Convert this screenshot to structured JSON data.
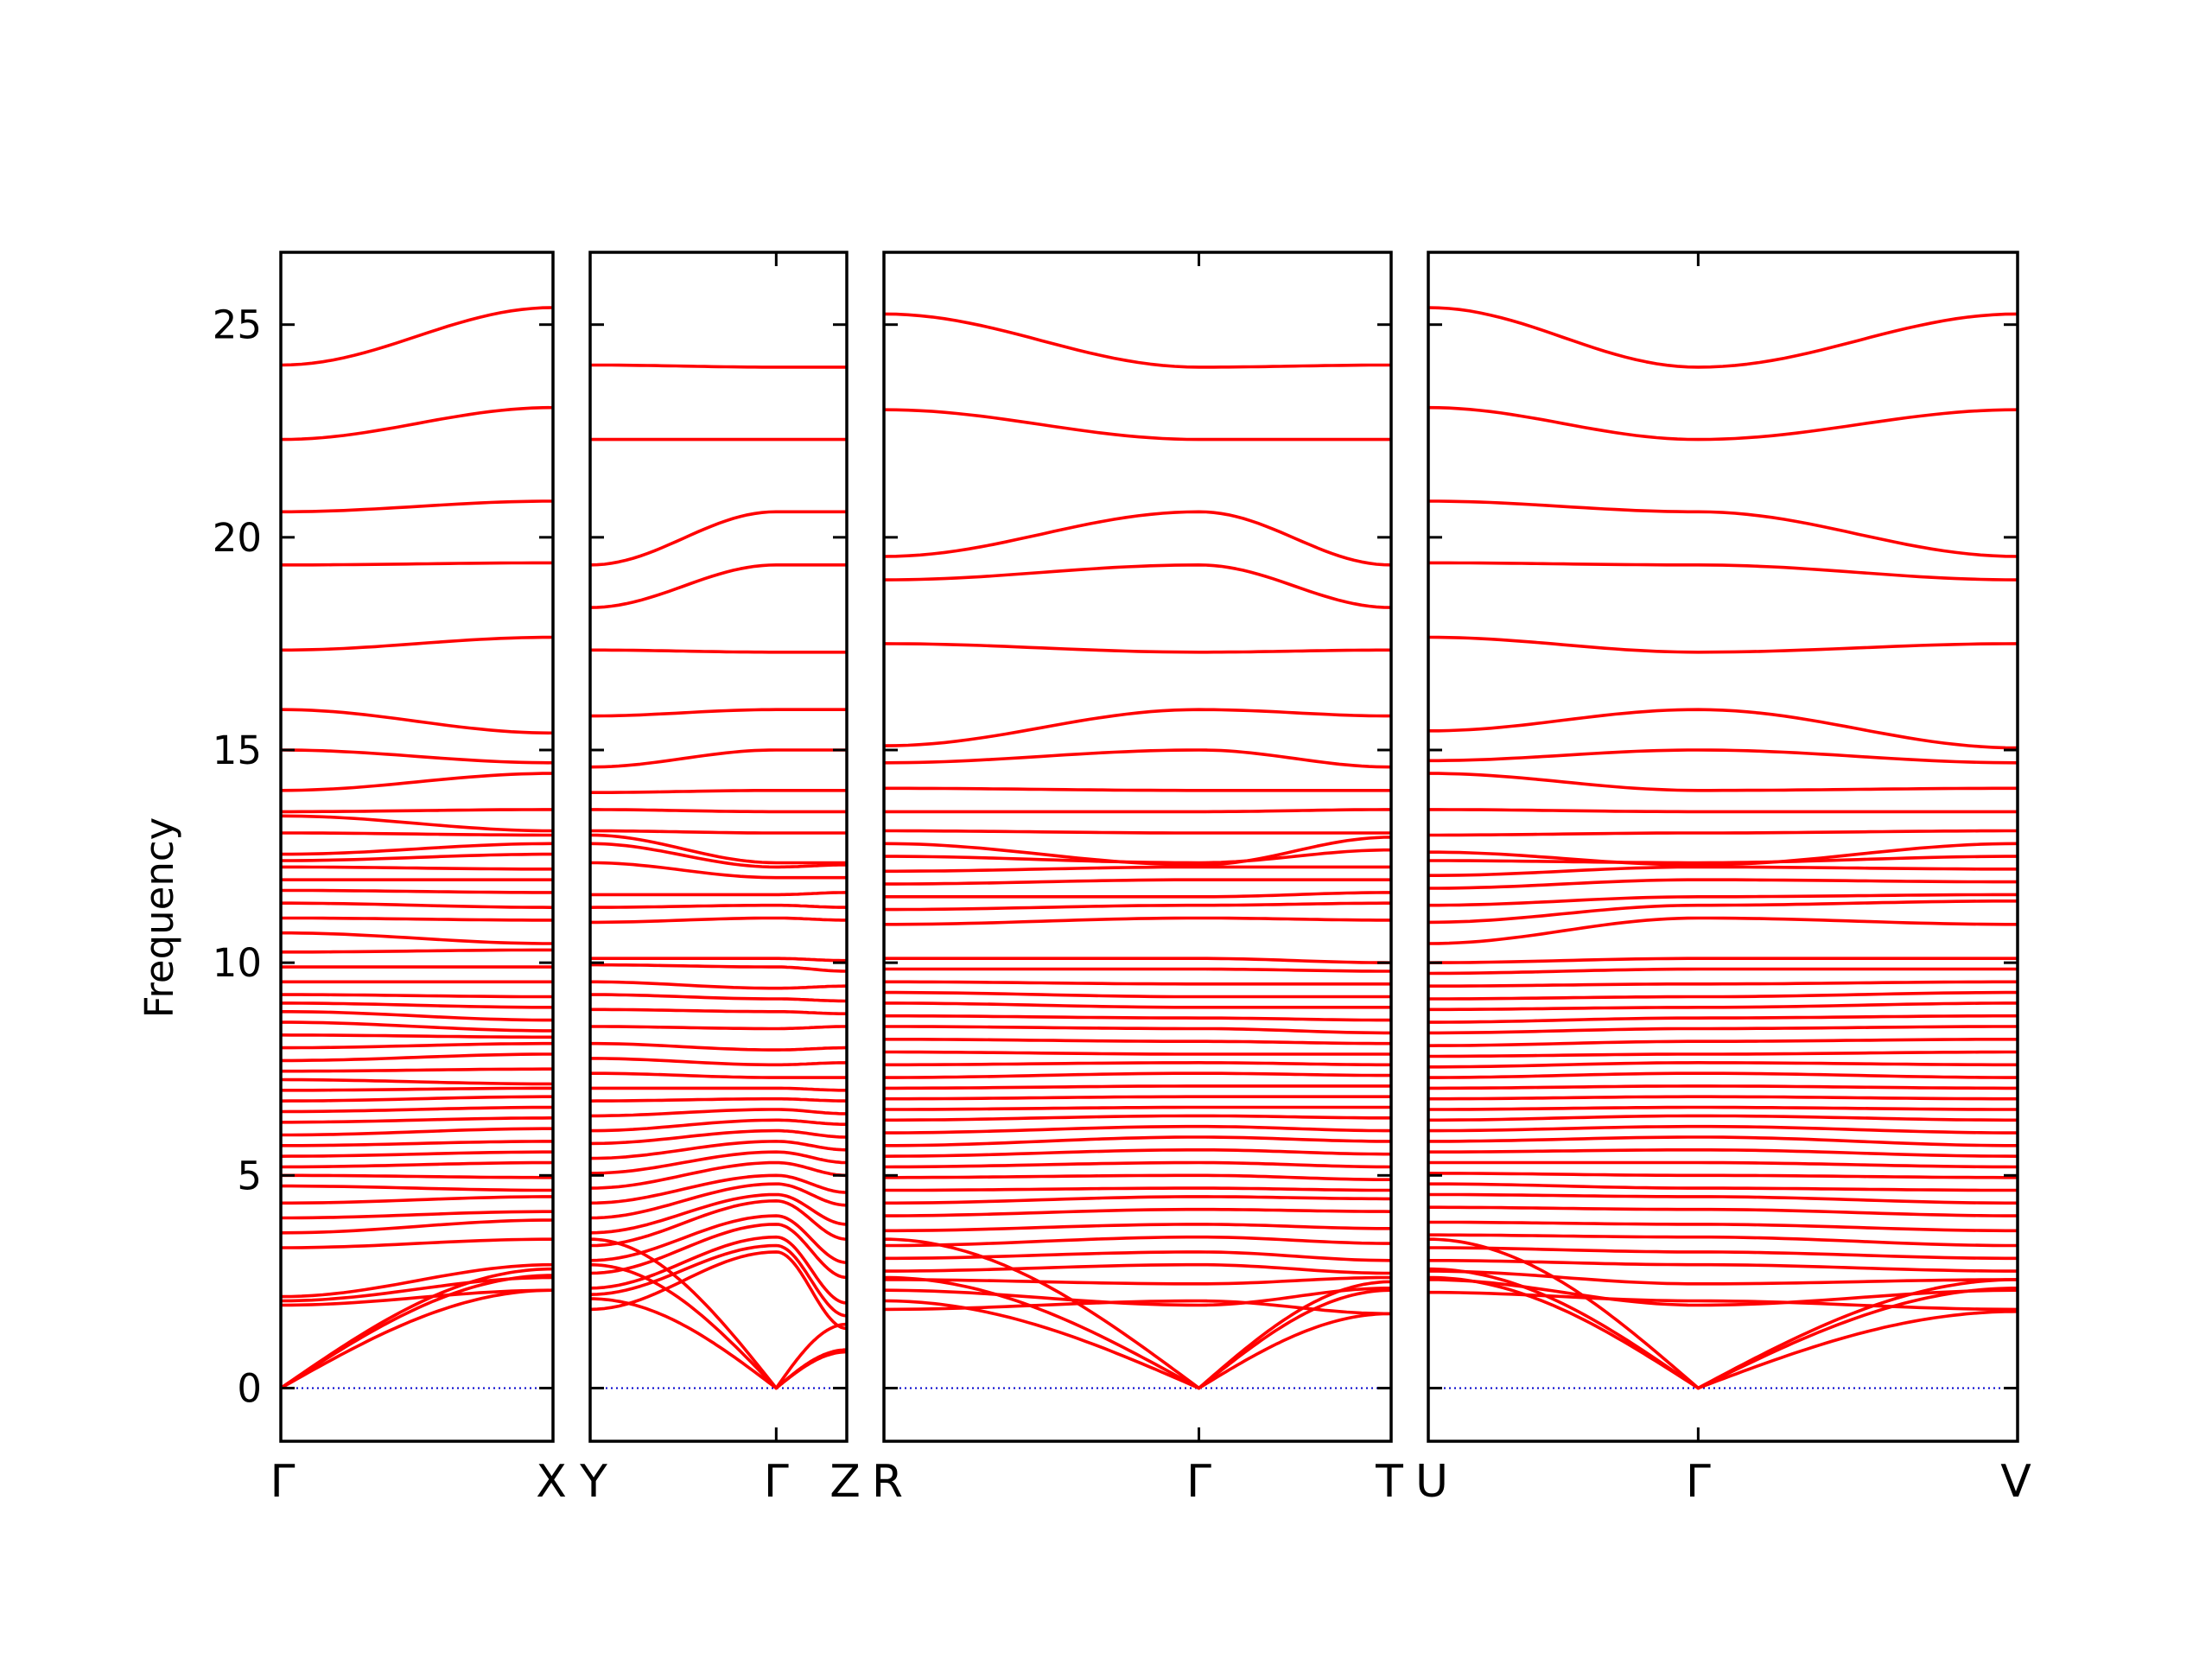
{
  "chart_data": {
    "type": "line",
    "ylabel": "Frequency",
    "ylim": [
      -1.25,
      26.7
    ],
    "yticks": [
      "0",
      "5",
      "10",
      "15",
      "20",
      "25"
    ],
    "ytick_values": [
      0,
      5,
      10,
      15,
      20,
      25
    ],
    "band_color": "#ff0000",
    "zero_line_color": "#0000cc",
    "panels": [
      {
        "id": "gamma-x",
        "tick_labels": [
          "Γ",
          "X"
        ],
        "branches": [
          {
            "name": "acoustic",
            "origin": 0,
            "end": [
              2.3,
              2.65,
              2.8
            ]
          },
          {
            "name": "optical",
            "values": [
              [
                1.95,
                2.3
              ],
              [
                2.05,
                2.6
              ],
              [
                2.15,
                2.9
              ],
              [
                3.3,
                3.5
              ],
              [
                3.65,
                3.95
              ],
              [
                4.0,
                4.15
              ],
              [
                4.35,
                4.5
              ],
              [
                4.75,
                4.65
              ],
              [
                5.0,
                4.95
              ],
              [
                5.2,
                5.3
              ],
              [
                5.45,
                5.55
              ],
              [
                5.7,
                5.8
              ],
              [
                5.95,
                6.1
              ],
              [
                6.25,
                6.35
              ],
              [
                6.5,
                6.6
              ],
              [
                6.75,
                6.85
              ],
              [
                7.0,
                7.05
              ],
              [
                7.25,
                7.15
              ],
              [
                7.45,
                7.5
              ],
              [
                7.7,
                7.85
              ],
              [
                8.0,
                8.1
              ],
              [
                8.3,
                8.25
              ],
              [
                8.6,
                8.4
              ],
              [
                8.85,
                8.65
              ],
              [
                9.05,
                8.95
              ],
              [
                9.25,
                9.2
              ],
              [
                9.55,
                9.55
              ],
              [
                9.9,
                9.9
              ],
              [
                10.25,
                10.3
              ],
              [
                10.7,
                10.45
              ],
              [
                11.05,
                11.0
              ],
              [
                11.4,
                11.3
              ],
              [
                11.7,
                11.65
              ],
              [
                11.95,
                11.95
              ],
              [
                12.25,
                12.2
              ],
              [
                12.4,
                12.55
              ],
              [
                12.55,
                12.8
              ],
              [
                13.05,
                13.0
              ],
              [
                13.45,
                13.1
              ],
              [
                13.55,
                13.6
              ],
              [
                14.05,
                14.45
              ],
              [
                15.0,
                14.7
              ],
              [
                15.95,
                15.4
              ],
              [
                17.35,
                17.65
              ],
              [
                19.35,
                19.4
              ],
              [
                20.6,
                20.85
              ],
              [
                22.3,
                23.05
              ],
              [
                24.05,
                25.4
              ]
            ]
          }
        ]
      },
      {
        "id": "y-gamma-z",
        "tick_labels": [
          "Y",
          "Γ",
          "Z"
        ],
        "branches": [
          {
            "name": "optical",
            "values": [
              [
                1.85,
                3.2,
                1.4
              ],
              [
                2.2,
                3.35,
                1.7
              ],
              [
                2.35,
                3.55,
                2.0
              ],
              [
                2.7,
                3.85,
                2.6
              ],
              [
                3.0,
                4.05,
                2.95
              ],
              [
                3.35,
                4.4,
                3.5
              ],
              [
                3.65,
                4.55,
                3.85
              ],
              [
                4.0,
                4.8,
                4.3
              ],
              [
                4.35,
                5.0,
                4.6
              ],
              [
                4.7,
                5.3,
                5.0
              ],
              [
                5.05,
                5.55,
                5.3
              ],
              [
                5.4,
                5.8,
                5.6
              ],
              [
                5.75,
                6.05,
                5.9
              ],
              [
                6.05,
                6.3,
                6.2
              ],
              [
                6.4,
                6.55,
                6.45
              ],
              [
                6.75,
                6.8,
                6.75
              ],
              [
                7.05,
                7.05,
                7.0
              ],
              [
                7.4,
                7.3,
                7.3
              ],
              [
                7.75,
                7.6,
                7.65
              ],
              [
                8.1,
                7.95,
                8.0
              ],
              [
                8.5,
                8.45,
                8.5
              ],
              [
                8.9,
                8.85,
                8.8
              ],
              [
                9.25,
                9.15,
                9.1
              ],
              [
                9.55,
                9.4,
                9.45
              ],
              [
                9.95,
                9.9,
                9.8
              ],
              [
                10.1,
                10.1,
                10.05
              ],
              [
                10.95,
                11.05,
                11.0
              ],
              [
                11.3,
                11.35,
                11.3
              ],
              [
                11.6,
                11.6,
                11.65
              ],
              [
                12.35,
                12.0,
                12.0
              ],
              [
                12.8,
                12.25,
                12.3
              ],
              [
                13.0,
                12.35,
                12.35
              ],
              [
                13.1,
                13.05,
                13.05
              ],
              [
                13.6,
                13.55,
                13.55
              ],
              [
                14.0,
                14.05,
                14.05
              ],
              [
                14.6,
                15.0,
                15.0
              ],
              [
                15.8,
                15.95,
                15.95
              ],
              [
                17.35,
                17.3,
                17.3
              ],
              [
                18.35,
                19.35,
                19.35
              ],
              [
                19.35,
                20.6,
                20.6
              ],
              [
                22.3,
                22.3,
                22.3
              ],
              [
                24.05,
                24.0,
                24.0
              ]
            ]
          },
          {
            "name": "acoustic",
            "origin": 1,
            "end_left": [
              2.1,
              3.5,
              2.9
            ],
            "end_right": [
              1.5,
              0.9,
              0.85
            ]
          }
        ]
      },
      {
        "id": "r-gamma-t",
        "tick_labels": [
          "R",
          "Γ",
          "T"
        ],
        "branches": [
          {
            "name": "optical",
            "values": [
              [
                1.85,
                2.05,
                1.75
              ],
              [
                2.3,
                1.95,
                2.35
              ],
              [
                2.55,
                2.45,
                2.6
              ],
              [
                2.75,
                2.9,
                2.7
              ],
              [
                3.05,
                3.2,
                3.0
              ],
              [
                3.35,
                3.55,
                3.4
              ],
              [
                3.7,
                3.85,
                3.75
              ],
              [
                4.05,
                4.2,
                4.15
              ],
              [
                4.35,
                4.5,
                4.45
              ],
              [
                4.65,
                4.7,
                4.65
              ],
              [
                4.95,
                5.0,
                4.9
              ],
              [
                5.2,
                5.3,
                5.2
              ],
              [
                5.45,
                5.6,
                5.5
              ],
              [
                5.7,
                5.9,
                5.8
              ],
              [
                6.0,
                6.15,
                6.05
              ],
              [
                6.3,
                6.4,
                6.35
              ],
              [
                6.55,
                6.6,
                6.6
              ],
              [
                6.8,
                6.85,
                6.85
              ],
              [
                7.05,
                7.1,
                7.1
              ],
              [
                7.3,
                7.4,
                7.35
              ],
              [
                7.6,
                7.65,
                7.6
              ],
              [
                7.9,
                7.85,
                7.85
              ],
              [
                8.2,
                8.15,
                8.1
              ],
              [
                8.5,
                8.45,
                8.35
              ],
              [
                8.75,
                8.7,
                8.65
              ],
              [
                9.05,
                8.95,
                8.95
              ],
              [
                9.3,
                9.2,
                9.2
              ],
              [
                9.55,
                9.5,
                9.5
              ],
              [
                9.85,
                9.85,
                9.8
              ],
              [
                10.1,
                10.1,
                10.0
              ],
              [
                10.9,
                11.05,
                11.0
              ],
              [
                11.25,
                11.35,
                11.4
              ],
              [
                11.55,
                11.55,
                11.65
              ],
              [
                11.85,
                11.95,
                11.95
              ],
              [
                12.15,
                12.25,
                12.25
              ],
              [
                12.5,
                12.35,
                12.65
              ],
              [
                12.8,
                12.3,
                12.95
              ],
              [
                13.1,
                13.05,
                13.05
              ],
              [
                13.55,
                13.55,
                13.6
              ],
              [
                14.1,
                14.05,
                14.05
              ],
              [
                14.7,
                15.0,
                14.6
              ],
              [
                15.1,
                15.95,
                15.8
              ],
              [
                17.5,
                17.3,
                17.35
              ],
              [
                19.0,
                19.35,
                18.35
              ],
              [
                19.55,
                20.6,
                19.35
              ],
              [
                23.0,
                22.3,
                22.3
              ],
              [
                25.25,
                24.0,
                24.05
              ]
            ]
          },
          {
            "name": "acoustic",
            "origin": 1,
            "end_left": [
              2.05,
              3.5,
              2.6
            ],
            "end_right": [
              1.75,
              2.3,
              2.5
            ]
          }
        ]
      },
      {
        "id": "u-gamma-v",
        "tick_labels": [
          "U",
          "Γ",
          "V"
        ],
        "branches": [
          {
            "name": "optical",
            "values": [
              [
                2.25,
                2.05,
                1.85
              ],
              [
                2.55,
                1.95,
                2.3
              ],
              [
                2.75,
                2.45,
                2.55
              ],
              [
                3.0,
                2.9,
                2.75
              ],
              [
                3.3,
                3.2,
                3.05
              ],
              [
                3.6,
                3.55,
                3.35
              ],
              [
                3.9,
                3.85,
                3.7
              ],
              [
                4.25,
                4.2,
                4.05
              ],
              [
                4.55,
                4.5,
                4.35
              ],
              [
                4.8,
                4.7,
                4.65
              ],
              [
                5.05,
                5.0,
                4.95
              ],
              [
                5.3,
                5.3,
                5.2
              ],
              [
                5.55,
                5.6,
                5.45
              ],
              [
                5.8,
                5.9,
                5.7
              ],
              [
                6.05,
                6.15,
                6.0
              ],
              [
                6.3,
                6.4,
                6.3
              ],
              [
                6.55,
                6.6,
                6.55
              ],
              [
                6.8,
                6.85,
                6.8
              ],
              [
                7.05,
                7.1,
                7.05
              ],
              [
                7.3,
                7.4,
                7.3
              ],
              [
                7.55,
                7.65,
                7.6
              ],
              [
                7.8,
                7.85,
                7.9
              ],
              [
                8.05,
                8.15,
                8.2
              ],
              [
                8.35,
                8.45,
                8.5
              ],
              [
                8.6,
                8.7,
                8.75
              ],
              [
                8.9,
                8.95,
                9.05
              ],
              [
                9.15,
                9.2,
                9.3
              ],
              [
                9.45,
                9.5,
                9.55
              ],
              [
                9.75,
                9.85,
                9.85
              ],
              [
                10.0,
                10.1,
                10.1
              ],
              [
                10.45,
                11.05,
                10.9
              ],
              [
                10.95,
                11.35,
                11.45
              ],
              [
                11.35,
                11.55,
                11.6
              ],
              [
                11.75,
                11.95,
                11.9
              ],
              [
                12.05,
                12.25,
                12.2
              ],
              [
                12.4,
                12.35,
                12.5
              ],
              [
                12.6,
                12.3,
                12.8
              ],
              [
                13.0,
                13.05,
                13.1
              ],
              [
                13.6,
                13.55,
                13.55
              ],
              [
                14.45,
                14.05,
                14.1
              ],
              [
                14.75,
                15.0,
                14.7
              ],
              [
                15.45,
                15.95,
                15.05
              ],
              [
                17.65,
                17.3,
                17.5
              ],
              [
                19.4,
                19.35,
                19.0
              ],
              [
                20.85,
                20.6,
                19.55
              ],
              [
                23.05,
                22.3,
                23.0
              ],
              [
                25.4,
                24.0,
                25.25
              ]
            ]
          },
          {
            "name": "acoustic",
            "origin": 1,
            "end_left": [
              2.6,
              3.5,
              2.8
            ],
            "end_right": [
              1.8,
              2.35,
              2.55
            ]
          }
        ]
      }
    ]
  }
}
